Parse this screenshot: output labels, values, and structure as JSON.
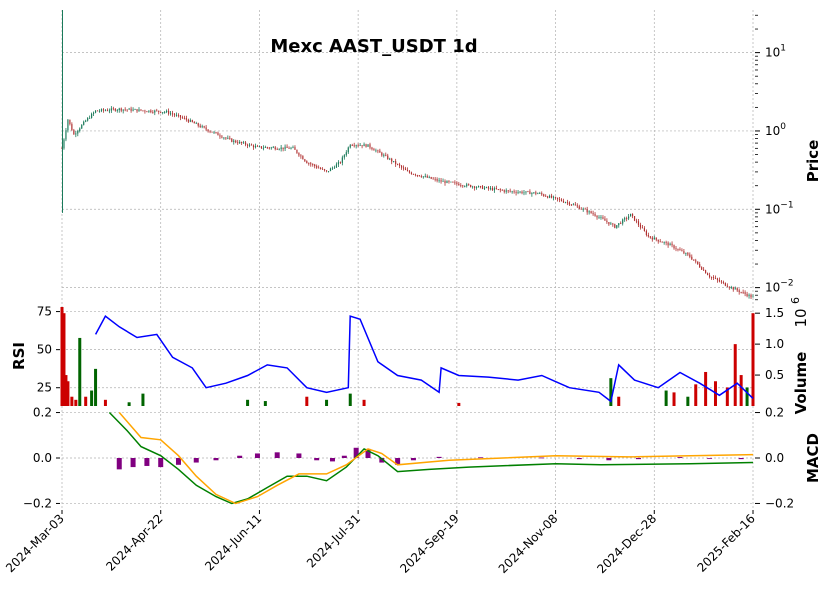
{
  "chart_data": [
    {
      "type": "candlestick",
      "title": "Mexc AAST_USDT 1d",
      "ylabel": "Price",
      "yscale": "log",
      "ylim": [
        0.006,
        35
      ],
      "y_ticks": [
        {
          "value": 10,
          "base": "10",
          "exp": "1"
        },
        {
          "value": 1,
          "base": "10",
          "exp": "0"
        },
        {
          "value": 0.1,
          "base": "10",
          "exp": "−1"
        },
        {
          "value": 0.01,
          "base": "10",
          "exp": "−2"
        }
      ],
      "x_range": [
        "2024-03-03",
        "2025-02-16"
      ],
      "x_tick_labels": [
        "2024-Mar-03",
        "2024-Apr-22",
        "2024-Jun-11",
        "2024-Jul-31",
        "2024-Sep-19",
        "2024-Nov-08",
        "2024-Dec-28",
        "2025-Feb-16"
      ],
      "close_trend": [
        {
          "date": "2024-03-03",
          "value": 0.6
        },
        {
          "date": "2024-03-06",
          "value": 1.4
        },
        {
          "date": "2024-03-09",
          "value": 0.9
        },
        {
          "date": "2024-03-15",
          "value": 1.35
        },
        {
          "date": "2024-03-20",
          "value": 1.8
        },
        {
          "date": "2024-04-01",
          "value": 1.9
        },
        {
          "date": "2024-04-25",
          "value": 1.75
        },
        {
          "date": "2024-05-05",
          "value": 1.4
        },
        {
          "date": "2024-05-15",
          "value": 1.05
        },
        {
          "date": "2024-05-28",
          "value": 0.75
        },
        {
          "date": "2024-06-10",
          "value": 0.62
        },
        {
          "date": "2024-06-28",
          "value": 0.6
        },
        {
          "date": "2024-07-05",
          "value": 0.4
        },
        {
          "date": "2024-07-15",
          "value": 0.3
        },
        {
          "date": "2024-07-22",
          "value": 0.4
        },
        {
          "date": "2024-07-27",
          "value": 0.68
        },
        {
          "date": "2024-08-05",
          "value": 0.65
        },
        {
          "date": "2024-08-15",
          "value": 0.45
        },
        {
          "date": "2024-08-25",
          "value": 0.3
        },
        {
          "date": "2024-09-10",
          "value": 0.23
        },
        {
          "date": "2024-09-25",
          "value": 0.2
        },
        {
          "date": "2024-10-15",
          "value": 0.17
        },
        {
          "date": "2024-10-30",
          "value": 0.16
        },
        {
          "date": "2024-11-15",
          "value": 0.12
        },
        {
          "date": "2024-11-28",
          "value": 0.085
        },
        {
          "date": "2024-12-08",
          "value": 0.06
        },
        {
          "date": "2024-12-16",
          "value": 0.085
        },
        {
          "date": "2024-12-25",
          "value": 0.045
        },
        {
          "date": "2025-01-05",
          "value": 0.035
        },
        {
          "date": "2025-01-15",
          "value": 0.025
        },
        {
          "date": "2025-01-25",
          "value": 0.014
        },
        {
          "date": "2025-02-05",
          "value": 0.01
        },
        {
          "date": "2025-02-16",
          "value": 0.0075
        }
      ],
      "up_color": "#1a7a5a",
      "down_color": "#b03030"
    },
    {
      "type": "line",
      "ylabel": "RSI",
      "ylim": [
        13,
        78
      ],
      "y_ticks": [
        25,
        50,
        75
      ],
      "color": "#0000ff",
      "series": [
        {
          "values": [
            {
              "date": "2024-03-20",
              "value": 60
            },
            {
              "date": "2024-03-25",
              "value": 72
            },
            {
              "date": "2024-04-01",
              "value": 65
            },
            {
              "date": "2024-04-10",
              "value": 58
            },
            {
              "date": "2024-04-20",
              "value": 60
            },
            {
              "date": "2024-04-28",
              "value": 45
            },
            {
              "date": "2024-05-08",
              "value": 38
            },
            {
              "date": "2024-05-15",
              "value": 25
            },
            {
              "date": "2024-05-25",
              "value": 28
            },
            {
              "date": "2024-06-05",
              "value": 33
            },
            {
              "date": "2024-06-15",
              "value": 40
            },
            {
              "date": "2024-06-25",
              "value": 38
            },
            {
              "date": "2024-07-05",
              "value": 25
            },
            {
              "date": "2024-07-15",
              "value": 22
            },
            {
              "date": "2024-07-26",
              "value": 25
            },
            {
              "date": "2024-07-27",
              "value": 72
            },
            {
              "date": "2024-08-01",
              "value": 70
            },
            {
              "date": "2024-08-10",
              "value": 42
            },
            {
              "date": "2024-08-20",
              "value": 33
            },
            {
              "date": "2024-09-01",
              "value": 30
            },
            {
              "date": "2024-09-10",
              "value": 22
            },
            {
              "date": "2024-09-11",
              "value": 38
            },
            {
              "date": "2024-09-20",
              "value": 33
            },
            {
              "date": "2024-10-05",
              "value": 32
            },
            {
              "date": "2024-10-20",
              "value": 30
            },
            {
              "date": "2024-11-01",
              "value": 33
            },
            {
              "date": "2024-11-15",
              "value": 25
            },
            {
              "date": "2024-11-30",
              "value": 22
            },
            {
              "date": "2024-12-06",
              "value": 16
            },
            {
              "date": "2024-12-10",
              "value": 40
            },
            {
              "date": "2024-12-18",
              "value": 30
            },
            {
              "date": "2024-12-30",
              "value": 25
            },
            {
              "date": "2025-01-10",
              "value": 35
            },
            {
              "date": "2025-01-20",
              "value": 28
            },
            {
              "date": "2025-01-30",
              "value": 20
            },
            {
              "date": "2025-02-08",
              "value": 28
            },
            {
              "date": "2025-02-16",
              "value": 18
            }
          ]
        }
      ]
    },
    {
      "type": "bar",
      "ylabel": "Volume",
      "y_multiplier": "10",
      "y_multiplier_exp": "6",
      "ylim": [
        0,
        1.6
      ],
      "y_ticks": [
        0.5,
        1.0,
        1.5
      ],
      "y_tick_labels": [
        "0.5",
        "1.0",
        "1.5"
      ],
      "up_color": "#006400",
      "down_color": "#cc0000",
      "bars": [
        {
          "date": "2024-03-03",
          "value": 1.6,
          "dir": "down"
        },
        {
          "date": "2024-03-04",
          "value": 1.5,
          "dir": "down"
        },
        {
          "date": "2024-03-05",
          "value": 0.5,
          "dir": "down"
        },
        {
          "date": "2024-03-06",
          "value": 0.4,
          "dir": "down"
        },
        {
          "date": "2024-03-08",
          "value": 0.15,
          "dir": "down"
        },
        {
          "date": "2024-03-10",
          "value": 0.1,
          "dir": "down"
        },
        {
          "date": "2024-03-12",
          "value": 1.1,
          "dir": "up"
        },
        {
          "date": "2024-03-15",
          "value": 0.15,
          "dir": "down"
        },
        {
          "date": "2024-03-18",
          "value": 0.25,
          "dir": "up"
        },
        {
          "date": "2024-03-20",
          "value": 0.6,
          "dir": "up"
        },
        {
          "date": "2024-03-25",
          "value": 0.1,
          "dir": "down"
        },
        {
          "date": "2024-04-06",
          "value": 0.06,
          "dir": "up"
        },
        {
          "date": "2024-04-13",
          "value": 0.2,
          "dir": "up"
        },
        {
          "date": "2024-06-05",
          "value": 0.1,
          "dir": "up"
        },
        {
          "date": "2024-06-14",
          "value": 0.08,
          "dir": "up"
        },
        {
          "date": "2024-07-05",
          "value": 0.15,
          "dir": "down"
        },
        {
          "date": "2024-07-15",
          "value": 0.1,
          "dir": "up"
        },
        {
          "date": "2024-07-27",
          "value": 0.2,
          "dir": "up"
        },
        {
          "date": "2024-08-03",
          "value": 0.1,
          "dir": "down"
        },
        {
          "date": "2024-09-20",
          "value": 0.05,
          "dir": "down"
        },
        {
          "date": "2024-12-06",
          "value": 0.45,
          "dir": "up"
        },
        {
          "date": "2024-12-10",
          "value": 0.15,
          "dir": "down"
        },
        {
          "date": "2025-01-03",
          "value": 0.25,
          "dir": "up"
        },
        {
          "date": "2025-01-07",
          "value": 0.22,
          "dir": "down"
        },
        {
          "date": "2025-01-14",
          "value": 0.15,
          "dir": "up"
        },
        {
          "date": "2025-01-18",
          "value": 0.35,
          "dir": "down"
        },
        {
          "date": "2025-01-23",
          "value": 0.55,
          "dir": "down"
        },
        {
          "date": "2025-01-28",
          "value": 0.4,
          "dir": "down"
        },
        {
          "date": "2025-02-03",
          "value": 0.3,
          "dir": "down"
        },
        {
          "date": "2025-02-07",
          "value": 1.0,
          "dir": "down"
        },
        {
          "date": "2025-02-10",
          "value": 0.5,
          "dir": "down"
        },
        {
          "date": "2025-02-13",
          "value": 0.3,
          "dir": "up"
        },
        {
          "date": "2025-02-16",
          "value": 1.5,
          "dir": "down"
        }
      ]
    },
    {
      "type": "line",
      "ylabel": "MACD",
      "ylim": [
        -0.22,
        0.22
      ],
      "y_ticks_left": [
        0.2,
        0.0,
        -0.2
      ],
      "y_ticks_right": [
        0.2,
        0.0,
        -0.2
      ],
      "y_tick_labels": [
        "0.2",
        "0.0",
        "−0.2"
      ],
      "series": [
        {
          "key": "macd",
          "color": "#008000",
          "values": [
            {
              "date": "2024-03-27",
              "value": 0.2
            },
            {
              "date": "2024-04-05",
              "value": 0.12
            },
            {
              "date": "2024-04-12",
              "value": 0.05
            },
            {
              "date": "2024-04-22",
              "value": 0.01
            },
            {
              "date": "2024-05-01",
              "value": -0.05
            },
            {
              "date": "2024-05-10",
              "value": -0.12
            },
            {
              "date": "2024-05-20",
              "value": -0.17
            },
            {
              "date": "2024-05-28",
              "value": -0.2
            },
            {
              "date": "2024-06-05",
              "value": -0.18
            },
            {
              "date": "2024-06-15",
              "value": -0.13
            },
            {
              "date": "2024-06-25",
              "value": -0.08
            },
            {
              "date": "2024-07-05",
              "value": -0.08
            },
            {
              "date": "2024-07-15",
              "value": -0.1
            },
            {
              "date": "2024-07-25",
              "value": -0.04
            },
            {
              "date": "2024-08-03",
              "value": 0.04
            },
            {
              "date": "2024-08-10",
              "value": 0.01
            },
            {
              "date": "2024-08-20",
              "value": -0.06
            },
            {
              "date": "2024-09-05",
              "value": -0.05
            },
            {
              "date": "2024-09-25",
              "value": -0.04
            },
            {
              "date": "2024-11-08",
              "value": -0.025
            },
            {
              "date": "2024-12-01",
              "value": -0.03
            },
            {
              "date": "2025-01-15",
              "value": -0.025
            },
            {
              "date": "2025-02-16",
              "value": -0.02
            }
          ]
        },
        {
          "key": "signal",
          "color": "#ffa500",
          "values": [
            {
              "date": "2024-04-01",
              "value": 0.2
            },
            {
              "date": "2024-04-12",
              "value": 0.09
            },
            {
              "date": "2024-04-22",
              "value": 0.08
            },
            {
              "date": "2024-05-01",
              "value": 0.01
            },
            {
              "date": "2024-05-10",
              "value": -0.08
            },
            {
              "date": "2024-05-20",
              "value": -0.16
            },
            {
              "date": "2024-05-30",
              "value": -0.2
            },
            {
              "date": "2024-06-10",
              "value": -0.17
            },
            {
              "date": "2024-06-20",
              "value": -0.12
            },
            {
              "date": "2024-07-01",
              "value": -0.07
            },
            {
              "date": "2024-07-15",
              "value": -0.07
            },
            {
              "date": "2024-07-25",
              "value": -0.03
            },
            {
              "date": "2024-08-05",
              "value": 0.04
            },
            {
              "date": "2024-08-12",
              "value": 0.02
            },
            {
              "date": "2024-08-20",
              "value": -0.03
            },
            {
              "date": "2024-09-15",
              "value": -0.01
            },
            {
              "date": "2024-11-08",
              "value": 0.01
            },
            {
              "date": "2024-12-15",
              "value": 0.005
            },
            {
              "date": "2025-02-16",
              "value": 0.015
            }
          ]
        }
      ],
      "histogram_color": "#800080",
      "histogram": [
        {
          "date": "2024-04-01",
          "value": -0.05
        },
        {
          "date": "2024-04-08",
          "value": -0.04
        },
        {
          "date": "2024-04-15",
          "value": -0.035
        },
        {
          "date": "2024-04-22",
          "value": -0.04
        },
        {
          "date": "2024-05-01",
          "value": -0.03
        },
        {
          "date": "2024-05-10",
          "value": -0.02
        },
        {
          "date": "2024-05-20",
          "value": -0.01
        },
        {
          "date": "2024-06-01",
          "value": 0.01
        },
        {
          "date": "2024-06-10",
          "value": 0.02
        },
        {
          "date": "2024-06-20",
          "value": 0.025
        },
        {
          "date": "2024-07-01",
          "value": 0.02
        },
        {
          "date": "2024-07-10",
          "value": -0.01
        },
        {
          "date": "2024-07-18",
          "value": -0.015
        },
        {
          "date": "2024-07-24",
          "value": 0.01
        },
        {
          "date": "2024-07-30",
          "value": 0.045
        },
        {
          "date": "2024-08-05",
          "value": 0.04
        },
        {
          "date": "2024-08-12",
          "value": -0.02
        },
        {
          "date": "2024-08-20",
          "value": -0.03
        },
        {
          "date": "2024-08-28",
          "value": -0.01
        },
        {
          "date": "2024-09-10",
          "value": 0.005
        },
        {
          "date": "2024-10-01",
          "value": 0.003
        },
        {
          "date": "2024-11-01",
          "value": 0.002
        },
        {
          "date": "2024-11-20",
          "value": -0.005
        },
        {
          "date": "2024-12-05",
          "value": -0.01
        },
        {
          "date": "2024-12-20",
          "value": -0.005
        },
        {
          "date": "2025-01-10",
          "value": 0.004
        },
        {
          "date": "2025-01-25",
          "value": -0.003
        },
        {
          "date": "2025-02-10",
          "value": -0.005
        }
      ]
    }
  ]
}
